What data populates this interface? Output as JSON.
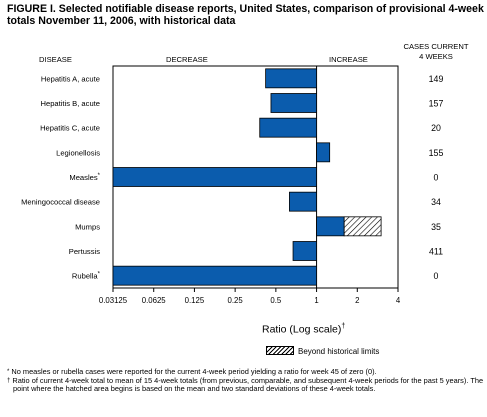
{
  "title": "FIGURE I. Selected notifiable disease reports, United States, comparison of provisional 4-week totals November 11, 2006, with historical data",
  "headers": {
    "disease": "DISEASE",
    "decrease": "DECREASE",
    "increase": "INCREASE",
    "cases_line1": "CASES CURRENT",
    "cases_line2": "4 WEEKS"
  },
  "legend": {
    "label": "Beyond historical limits"
  },
  "footnotes": [
    {
      "mark": "*",
      "text": "No measles or rubella cases were reported for the current 4-week period yielding a ratio for week 45 of zero (0)."
    },
    {
      "mark": "†",
      "text": "Ratio of current 4-week total to mean of 15 4-week totals (from previous, comparable, and subsequent 4-week periods for the past 5 years). The point where the hatched area begins is based on the mean and two standard deviations of these 4-week totals."
    }
  ],
  "colors": {
    "bar": "#0b5cad",
    "hatch": "#000000",
    "axis": "#000000"
  },
  "chart_data": {
    "type": "bar",
    "orientation": "horizontal",
    "scale": "log2",
    "baseline": 1,
    "xlabel": "Ratio (Log scale)",
    "xlabel_mark": "†",
    "xlim": [
      0.03125,
      4
    ],
    "xticks": [
      "0.03125",
      "0.0625",
      "0.125",
      "0.25",
      "0.5",
      "1",
      "2",
      "4"
    ],
    "xtick_values": [
      0.03125,
      0.0625,
      0.125,
      0.25,
      0.5,
      1,
      2,
      4
    ],
    "categories": [
      {
        "name": "Hepatitis A, acute",
        "mark": "",
        "ratio": 0.42,
        "hatch_from": null,
        "cases": "149"
      },
      {
        "name": "Hepatitis B, acute",
        "mark": "",
        "ratio": 0.46,
        "hatch_from": null,
        "cases": "157"
      },
      {
        "name": "Hepatitis C, acute",
        "mark": "",
        "ratio": 0.38,
        "hatch_from": null,
        "cases": "20"
      },
      {
        "name": "Legionellosis",
        "mark": "",
        "ratio": 1.25,
        "hatch_from": null,
        "cases": "155"
      },
      {
        "name": "Measles",
        "mark": "*",
        "ratio": 0.03125,
        "hatch_from": null,
        "cases": "0"
      },
      {
        "name": "Meningococcal disease",
        "mark": "",
        "ratio": 0.63,
        "hatch_from": null,
        "cases": "34"
      },
      {
        "name": "Mumps",
        "mark": "",
        "ratio": 3.0,
        "hatch_from": 1.6,
        "cases": "35"
      },
      {
        "name": "Pertussis",
        "mark": "",
        "ratio": 0.67,
        "hatch_from": null,
        "cases": "411"
      },
      {
        "name": "Rubella",
        "mark": "*",
        "ratio": 0.03125,
        "hatch_from": null,
        "cases": "0"
      }
    ]
  }
}
